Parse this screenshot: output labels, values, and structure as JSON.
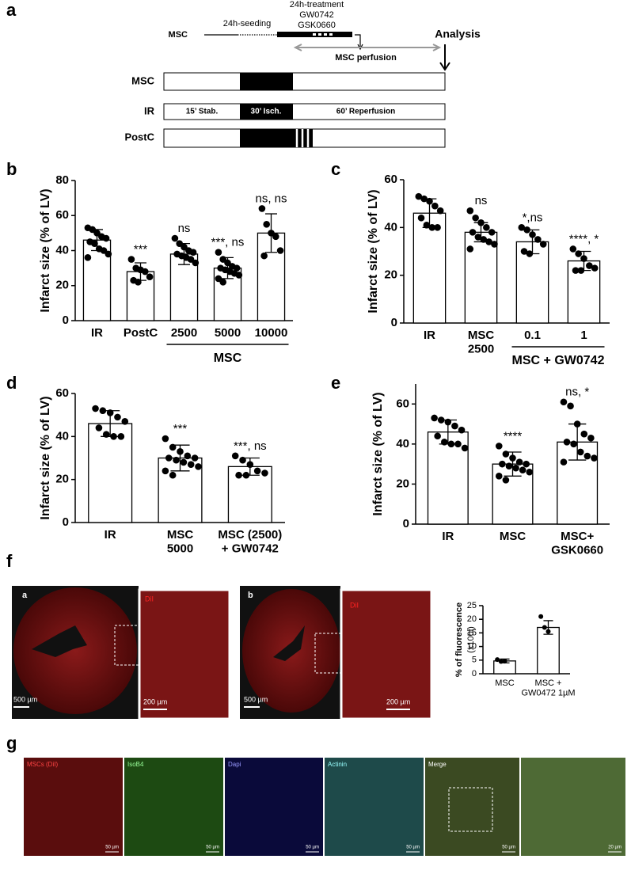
{
  "panel_labels": [
    "a",
    "b",
    "c",
    "d",
    "e",
    "f",
    "g"
  ],
  "panel_a": {
    "timeline_label": "MSC",
    "seeding": "24h-seeding",
    "treatment": [
      "24h-treatment",
      "GW0742",
      "GSK0660"
    ],
    "analysis": "Analysis",
    "perfusion": "MSC perfusion",
    "rows": [
      {
        "label": "MSC"
      },
      {
        "label": "IR",
        "segments": [
          "15’ Stab.",
          "30’ Isch.",
          "60’ Reperfusion"
        ]
      },
      {
        "label": "PostC"
      }
    ]
  },
  "chart_data": [
    {
      "type": "bar",
      "ylabel": "Infarct size (% of LV)",
      "categories": [
        "IR",
        "PostC",
        "2500",
        "5000",
        "10000"
      ],
      "group_label": "MSC",
      "values": [
        46,
        28,
        38,
        30,
        50
      ],
      "errors": [
        6,
        5,
        6,
        6,
        11
      ],
      "points": [
        [
          53,
          52,
          50,
          48,
          47,
          45,
          44,
          41,
          40,
          38,
          36
        ],
        [
          35,
          30,
          29,
          28,
          25,
          23,
          22
        ],
        [
          47,
          44,
          42,
          40,
          39,
          38,
          37,
          36,
          35,
          33
        ],
        [
          39,
          35,
          33,
          31,
          30,
          30,
          29,
          28,
          27,
          26,
          24,
          22
        ],
        [
          64,
          55,
          50,
          48,
          40,
          37
        ]
      ],
      "annotations": [
        null,
        "***",
        "ns",
        "***, ns",
        "ns, ns"
      ],
      "ylim": [
        0,
        80
      ],
      "yticks": [
        0,
        20,
        40,
        60,
        80
      ]
    },
    {
      "type": "bar",
      "ylabel": "Infarct size (% of LV)",
      "categories": [
        "IR",
        "MSC\n2500",
        "0.1",
        "1"
      ],
      "group_label": "MSC + GW0742",
      "values": [
        46,
        38,
        34,
        26
      ],
      "errors": [
        6,
        4,
        5,
        4
      ],
      "points": [
        [
          53,
          52,
          51,
          49,
          47,
          44,
          41,
          40,
          40
        ],
        [
          47,
          44,
          42,
          40,
          38,
          38,
          36,
          35,
          34,
          33,
          31
        ],
        [
          40,
          39,
          37,
          35,
          33,
          30,
          29
        ],
        [
          31,
          29,
          27,
          24,
          23,
          22,
          22
        ]
      ],
      "annotations": [
        null,
        "ns",
        "*,ns",
        "****, *"
      ],
      "ylim": [
        0,
        60
      ],
      "yticks": [
        0,
        20,
        40,
        60
      ]
    },
    {
      "type": "bar",
      "ylabel": "Infarct size (% of LV)",
      "categories": [
        "IR",
        "MSC\n5000",
        "MSC (2500)\n+ GW0742"
      ],
      "values": [
        46,
        30,
        26
      ],
      "errors": [
        6,
        6,
        4
      ],
      "points": [
        [
          53,
          52,
          51,
          49,
          47,
          44,
          41,
          40,
          40
        ],
        [
          39,
          35,
          33,
          31,
          30,
          30,
          29,
          28,
          27,
          26,
          24,
          22
        ],
        [
          31,
          29,
          27,
          24,
          23,
          22,
          22
        ]
      ],
      "annotations": [
        null,
        "***",
        "***, ns"
      ],
      "ylim": [
        0,
        60
      ],
      "yticks": [
        0,
        20,
        40,
        60
      ]
    },
    {
      "type": "bar",
      "ylabel": "Infarct size (% of LV)",
      "categories": [
        "IR",
        "MSC",
        "MSC+\nGSK0660"
      ],
      "values": [
        46,
        30,
        41
      ],
      "errors": [
        6,
        6,
        9
      ],
      "points": [
        [
          53,
          52,
          51,
          49,
          47,
          44,
          41,
          40,
          40,
          38
        ],
        [
          39,
          35,
          33,
          31,
          30,
          30,
          29,
          28,
          27,
          26,
          24,
          22
        ],
        [
          61,
          59,
          50,
          45,
          43,
          41,
          40,
          36,
          34,
          33,
          31
        ]
      ],
      "annotations": [
        null,
        "****",
        "ns, *"
      ],
      "ylim": [
        0,
        70
      ],
      "yticks": [
        0,
        20,
        40,
        60
      ]
    },
    {
      "type": "bar",
      "ylabel": "% of fluorescence",
      "ylabel_note": "(x100l)",
      "categories": [
        "MSC",
        "MSC +\nGW0472 1µM"
      ],
      "values": [
        4.7,
        17
      ],
      "errors": [
        0.7,
        2.5
      ],
      "points": [
        [
          5.2,
          4.5,
          4.6
        ],
        [
          21,
          17,
          15.5
        ]
      ],
      "annotations": [
        null,
        null
      ],
      "ylim": [
        0,
        25
      ],
      "yticks": [
        0,
        5,
        10,
        15,
        20,
        25
      ]
    }
  ],
  "panel_f": {
    "images": [
      {
        "label": "a",
        "inset": "DiI",
        "scale": "500 µm",
        "inset_scale": "200 µm"
      },
      {
        "label": "b",
        "inset": "DiI",
        "scale": "500 µm",
        "inset_scale": "200 µm"
      }
    ]
  },
  "panel_g": {
    "tiles": [
      {
        "label": "MSCs (DiI)",
        "scale": "50 µm"
      },
      {
        "label": "IsoB4",
        "scale": "50 µm"
      },
      {
        "label": "Dapi",
        "scale": "50 µm"
      },
      {
        "label": "Actinin",
        "scale": "50 µm"
      },
      {
        "label": "Merge",
        "scale": "50 µm"
      },
      {
        "label": null,
        "scale": "20 µm"
      }
    ]
  }
}
